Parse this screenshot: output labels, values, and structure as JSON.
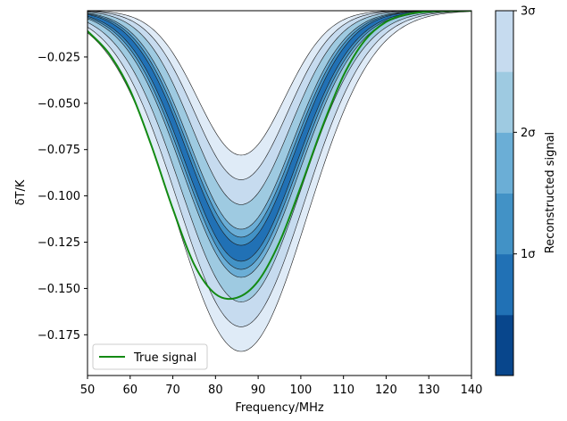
{
  "chart_data": {
    "type": "area",
    "xlabel": "Frequency/MHz",
    "ylabel": "δT/K",
    "xlim": [
      50,
      140
    ],
    "ylim": [
      -0.197,
      0.0
    ],
    "x_ticks": [
      50,
      60,
      70,
      80,
      90,
      100,
      110,
      120,
      130,
      140
    ],
    "x_tick_labels": [
      "50",
      "60",
      "70",
      "80",
      "90",
      "100",
      "110",
      "120",
      "130",
      "140"
    ],
    "y_ticks": [
      -0.025,
      -0.05,
      -0.075,
      -0.1,
      -0.125,
      -0.15,
      -0.175
    ],
    "y_tick_labels": [
      "−0.025",
      "−0.050",
      "−0.075",
      "−0.100",
      "−0.125",
      "−0.150",
      "−0.175"
    ],
    "grid": false,
    "legend_position": "lower-left",
    "legend": [
      {
        "name": "True signal",
        "color": "#138a13"
      }
    ],
    "true_signal": {
      "name": "True signal",
      "color": "#138a13",
      "center_mhz": 85,
      "sigma_mhz": 15.5,
      "depth": -0.155,
      "x": [
        50,
        55,
        60,
        65,
        70,
        75,
        80,
        85,
        90,
        95,
        100,
        105,
        110,
        115,
        120,
        125,
        130,
        135,
        140
      ],
      "y": [
        -0.011,
        -0.023,
        -0.043,
        -0.073,
        -0.107,
        -0.137,
        -0.153,
        -0.155,
        -0.146,
        -0.125,
        -0.095,
        -0.063,
        -0.035,
        -0.016,
        -0.006,
        -0.0019,
        -0.0005,
        -0.0001,
        0.0
      ]
    },
    "reconstruction": {
      "center_mhz": 86,
      "sigma_mhz": 12.8,
      "median_depth": -0.131,
      "levels": [
        "0",
        "0.5σ",
        "1σ",
        "1.5σ",
        "2σ",
        "2.5σ",
        "3σ"
      ],
      "band_half_width_depth": [
        0,
        0.0043,
        0.0087,
        0.013,
        0.0263,
        0.0397,
        0.053
      ],
      "band_half_width_width_mhz": [
        0,
        0.27,
        0.53,
        0.8,
        1.4,
        2.0,
        2.6
      ],
      "band_colors": [
        "#08468c",
        "#2171b5",
        "#4292c6",
        "#6baed6",
        "#9ecae1",
        "#c6dbef",
        "#dfebf7"
      ]
    },
    "colorbar": {
      "label": "Reconstructed signal",
      "tick_labels": [
        "1σ",
        "2σ",
        "3σ"
      ],
      "tick_values": [
        1,
        2,
        3
      ],
      "range": [
        0,
        3
      ],
      "colors": [
        "#08468c",
        "#2171b5",
        "#4292c6",
        "#6baed6",
        "#9ecae1",
        "#c6dbef"
      ]
    }
  }
}
